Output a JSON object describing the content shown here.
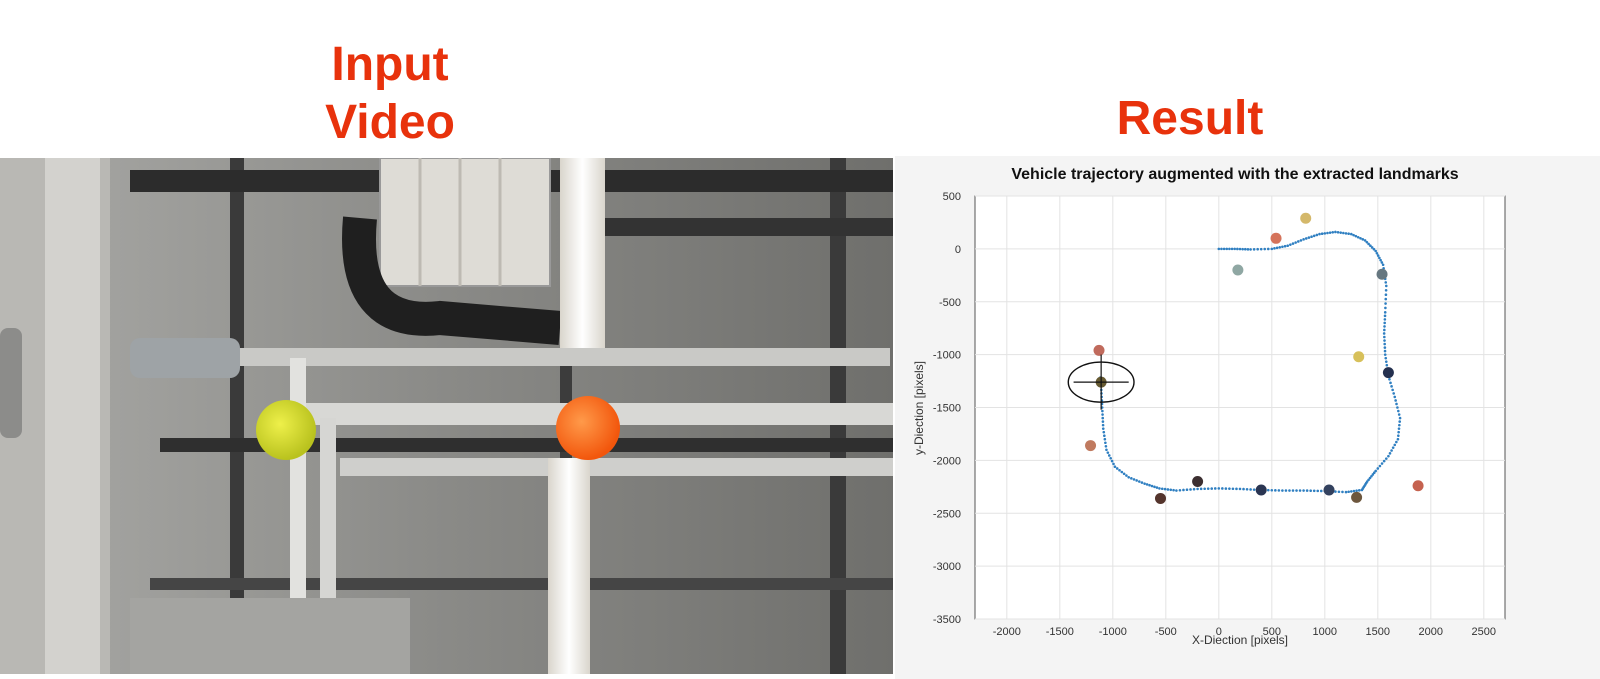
{
  "headings": {
    "input_line1": "Input",
    "input_line2": "Video",
    "result": "Result"
  },
  "colors": {
    "heading": "#e8320c",
    "trajectory": "#2f7fc1",
    "yellow_ball": "#d4dc2a",
    "orange_ball": "#ff6a1a"
  },
  "video": {
    "content": "ceiling camera frame with pipes, duct, fluorescent lights, a yellow ball and an orange ball"
  },
  "chart_data": {
    "type": "scatter",
    "title": "Vehicle trajectory augmented with the extracted landmarks",
    "xlabel": "X-Diection [pixels]",
    "ylabel": "y-Diection [pixels]",
    "xlim": [
      -2300,
      2700
    ],
    "ylim": [
      -3500,
      500
    ],
    "xticks": [
      -2000,
      -1500,
      -1000,
      -500,
      0,
      500,
      1000,
      1500,
      2000,
      2500
    ],
    "yticks": [
      500,
      0,
      -500,
      -1000,
      -1500,
      -2000,
      -2500,
      -3000,
      -3500
    ],
    "grid": true,
    "series": [
      {
        "kind": "trajectory",
        "color": "#2f7fc1",
        "points": [
          [
            0,
            0
          ],
          [
            150,
            0
          ],
          [
            300,
            -5
          ],
          [
            500,
            0
          ],
          [
            650,
            30
          ],
          [
            800,
            90
          ],
          [
            950,
            140
          ],
          [
            1100,
            160
          ],
          [
            1250,
            140
          ],
          [
            1380,
            80
          ],
          [
            1480,
            -20
          ],
          [
            1550,
            -150
          ],
          [
            1580,
            -350
          ],
          [
            1570,
            -600
          ],
          [
            1560,
            -800
          ],
          [
            1570,
            -1000
          ],
          [
            1600,
            -1200
          ],
          [
            1660,
            -1400
          ],
          [
            1710,
            -1600
          ],
          [
            1690,
            -1800
          ],
          [
            1600,
            -1960
          ],
          [
            1480,
            -2100
          ],
          [
            1400,
            -2200
          ],
          [
            1350,
            -2280
          ],
          [
            1200,
            -2300
          ],
          [
            1000,
            -2290
          ],
          [
            800,
            -2285
          ],
          [
            600,
            -2285
          ],
          [
            400,
            -2280
          ],
          [
            200,
            -2270
          ],
          [
            0,
            -2265
          ],
          [
            -200,
            -2270
          ],
          [
            -400,
            -2285
          ],
          [
            -560,
            -2265
          ],
          [
            -700,
            -2220
          ],
          [
            -850,
            -2160
          ],
          [
            -980,
            -2060
          ],
          [
            -1060,
            -1900
          ],
          [
            -1090,
            -1700
          ],
          [
            -1100,
            -1500
          ],
          [
            -1110,
            -1300
          ],
          [
            -1120,
            -1200
          ]
        ]
      },
      {
        "kind": "landmarks",
        "points": [
          {
            "x": 820,
            "y": 290,
            "color": "#d4b86a"
          },
          {
            "x": 540,
            "y": 100,
            "color": "#d5735a"
          },
          {
            "x": 180,
            "y": -200,
            "color": "#8fa7a3"
          },
          {
            "x": 1540,
            "y": -240,
            "color": "#667780"
          },
          {
            "x": 1320,
            "y": -1020,
            "color": "#d7c05a"
          },
          {
            "x": 1600,
            "y": -1170,
            "color": "#24304f"
          },
          {
            "x": -1130,
            "y": -960,
            "color": "#c06a5c"
          },
          {
            "x": -1110,
            "y": -1260,
            "color": "#665a32"
          },
          {
            "x": -1210,
            "y": -1860,
            "color": "#c07a5f"
          },
          {
            "x": -200,
            "y": -2200,
            "color": "#3b2e30"
          },
          {
            "x": -550,
            "y": -2360,
            "color": "#54342c"
          },
          {
            "x": 400,
            "y": -2280,
            "color": "#2a3552"
          },
          {
            "x": 1040,
            "y": -2280,
            "color": "#33415e"
          },
          {
            "x": 1300,
            "y": -2350,
            "color": "#6d573d"
          },
          {
            "x": 1880,
            "y": -2240,
            "color": "#c5624f"
          }
        ]
      }
    ],
    "current_pose": {
      "x": -1110,
      "y": -1260,
      "rx": 310,
      "ry": 190,
      "arm": 260
    }
  }
}
